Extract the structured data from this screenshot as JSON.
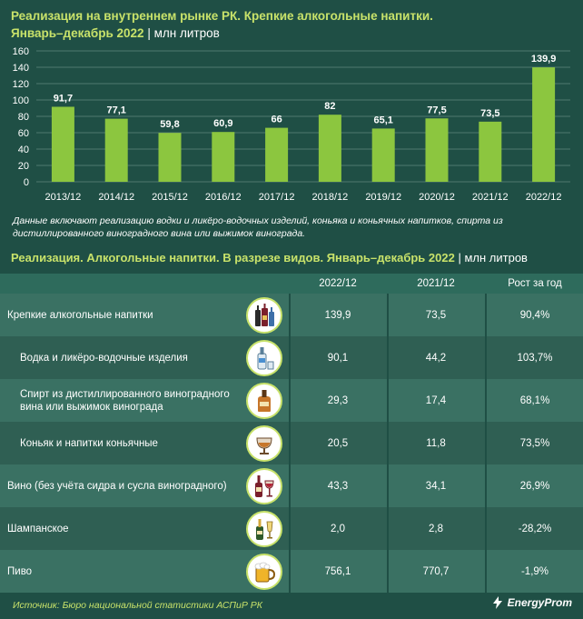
{
  "header": {
    "title": "Реализация на внутреннем рынке РК. Крепкие алкогольные напитки.",
    "title_line2": "Январь–декабрь 2022",
    "separator": "|",
    "unit": "млн литров"
  },
  "chart_data": {
    "type": "bar",
    "categories": [
      "2013/12",
      "2014/12",
      "2015/12",
      "2016/12",
      "2017/12",
      "2018/12",
      "2019/12",
      "2020/12",
      "2021/12",
      "2022/12"
    ],
    "values": [
      91.7,
      77.1,
      59.8,
      60.9,
      66,
      82,
      65.1,
      77.5,
      73.5,
      139.9
    ],
    "labels": [
      "91,7",
      "77,1",
      "59,8",
      "60,9",
      "66",
      "82",
      "65,1",
      "77,5",
      "73,5",
      "139,9"
    ],
    "yticks": [
      0,
      20,
      40,
      60,
      80,
      100,
      120,
      140,
      160
    ],
    "ylim": [
      0,
      160
    ],
    "grid": true,
    "bar_color": "#8cc63f",
    "title": "Реализация на внутреннем рынке РК. Крепкие алкогольные напитки. Январь–декабрь 2022",
    "ylabel": "млн литров"
  },
  "note": "Данные включают реализацию водки и ликёро-водочных изделий, коньяка и коньячных напитков, спирта из дистиллированного виноградного вина или выжимок винограда.",
  "table": {
    "title": "Реализация. Алкогольные напитки. В разрезе видов. Январь–декабрь 2022",
    "separator": "|",
    "unit": "млн литров",
    "columns": [
      "2022/12",
      "2021/12",
      "Рост за год"
    ],
    "rows": [
      {
        "name": "Крепкие алкогольные напитки",
        "icon": "bottles-icon",
        "v2022": "139,9",
        "v2021": "73,5",
        "growth": "90,4%"
      },
      {
        "name": "Водка и ликёро-водочные изделия",
        "icon": "vodka-bottle-icon",
        "v2022": "90,1",
        "v2021": "44,2",
        "growth": "103,7%"
      },
      {
        "name": "Спирт из дистиллированного виноградного вина или выжимок винограда",
        "icon": "cognac-bottle-icon",
        "v2022": "29,3",
        "v2021": "17,4",
        "growth": "68,1%"
      },
      {
        "name": "Коньяк и напитки коньячные",
        "icon": "cognac-glass-icon",
        "v2022": "20,5",
        "v2021": "11,8",
        "growth": "73,5%"
      },
      {
        "name": "Вино (без учёта сидра и сусла виноградного)",
        "icon": "wine-icon",
        "v2022": "43,3",
        "v2021": "34,1",
        "growth": "26,9%"
      },
      {
        "name": "Шампанское",
        "icon": "champagne-icon",
        "v2022": "2,0",
        "v2021": "2,8",
        "growth": "-28,2%"
      },
      {
        "name": "Пиво",
        "icon": "beer-mug-icon",
        "v2022": "756,1",
        "v2021": "770,7",
        "growth": "-1,9%"
      }
    ]
  },
  "footer": {
    "source": "Источник: Бюро национальной статистики АСПиР РК",
    "brand": "EnergyProm"
  },
  "colors": {
    "background": "#1f4f45",
    "accent": "#c8e26a",
    "bar": "#8cc63f"
  }
}
